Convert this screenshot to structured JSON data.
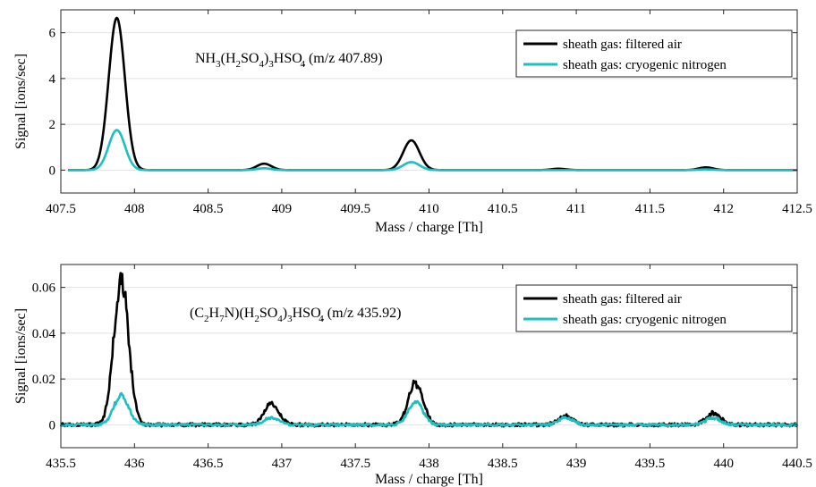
{
  "chart_data": [
    {
      "type": "line",
      "xlabel": "Mass / charge [Th]",
      "ylabel": "Signal [ions/sec]",
      "xlim": [
        407.5,
        412.5
      ],
      "ylim": [
        -1,
        7
      ],
      "xticks": [
        "407.5",
        "408",
        "408.5",
        "409",
        "409.5",
        "410",
        "410.5",
        "411",
        "411.5",
        "412",
        "412.5"
      ],
      "yticks": [
        "0",
        "2",
        "4",
        "6"
      ],
      "grid": "horizontal",
      "legend_position": "top-right",
      "annotation": {
        "base": "NH",
        "s1": "3",
        "t2": "(H",
        "s3": "2",
        "t4": "SO",
        "s5": "4",
        "t6": ")",
        "s7": "3",
        "t8": "HSO",
        "sup": "-",
        "s9": "4",
        "t10": " (m/z 407.89)"
      },
      "series": [
        {
          "name": "sheath gas: filtered air",
          "color": "#000000",
          "peaks": [
            {
              "x": 407.88,
              "y": 6.65,
              "w": 0.055
            },
            {
              "x": 408.88,
              "y": 0.28,
              "w": 0.05
            },
            {
              "x": 409.88,
              "y": 1.3,
              "w": 0.055
            },
            {
              "x": 410.88,
              "y": 0.06,
              "w": 0.05
            },
            {
              "x": 411.88,
              "y": 0.12,
              "w": 0.05
            }
          ]
        },
        {
          "name": "sheath gas: cryogenic nitrogen",
          "color": "#1dbfbf",
          "peaks": [
            {
              "x": 407.88,
              "y": 1.75,
              "w": 0.055
            },
            {
              "x": 408.88,
              "y": 0.08,
              "w": 0.05
            },
            {
              "x": 409.88,
              "y": 0.35,
              "w": 0.055
            },
            {
              "x": 411.88,
              "y": 0.03,
              "w": 0.05
            }
          ]
        }
      ]
    },
    {
      "type": "line",
      "xlabel": "Mass / charge [Th]",
      "ylabel": "Signal [ions/sec]",
      "xlim": [
        435.5,
        440.5
      ],
      "ylim": [
        -0.01,
        0.07
      ],
      "xticks": [
        "435.5",
        "436",
        "436.5",
        "437",
        "437.5",
        "438",
        "438.5",
        "439",
        "439.5",
        "440",
        "440.5"
      ],
      "yticks": [
        "0",
        "0.02",
        "0.04",
        "0.06"
      ],
      "grid": "horizontal",
      "legend_position": "top-right",
      "annotation": {
        "base": "(C",
        "s1": "2",
        "t2": "H",
        "s3": "7",
        "t4": "N)(H",
        "s5": "2",
        "t6": "SO",
        "s7": "4",
        "t8": ")",
        "s9": "3",
        "t10": "HSO",
        "sup": "-",
        "s11": "4",
        "t12": " (m/z 435.92)"
      },
      "series": [
        {
          "name": "sheath gas: filtered air",
          "color": "#000000",
          "peaks": [
            {
              "x": 435.91,
              "y": 0.064,
              "w": 0.05
            },
            {
              "x": 436.93,
              "y": 0.009,
              "w": 0.05
            },
            {
              "x": 437.91,
              "y": 0.018,
              "w": 0.05
            },
            {
              "x": 438.93,
              "y": 0.004,
              "w": 0.05
            },
            {
              "x": 439.93,
              "y": 0.005,
              "w": 0.05
            }
          ]
        },
        {
          "name": "sheath gas: cryogenic nitrogen",
          "color": "#1dbfbf",
          "peaks": [
            {
              "x": 435.91,
              "y": 0.013,
              "w": 0.05
            },
            {
              "x": 436.93,
              "y": 0.003,
              "w": 0.05
            },
            {
              "x": 437.91,
              "y": 0.01,
              "w": 0.05
            },
            {
              "x": 438.93,
              "y": 0.003,
              "w": 0.05
            },
            {
              "x": 439.93,
              "y": 0.003,
              "w": 0.05
            }
          ]
        }
      ]
    }
  ]
}
